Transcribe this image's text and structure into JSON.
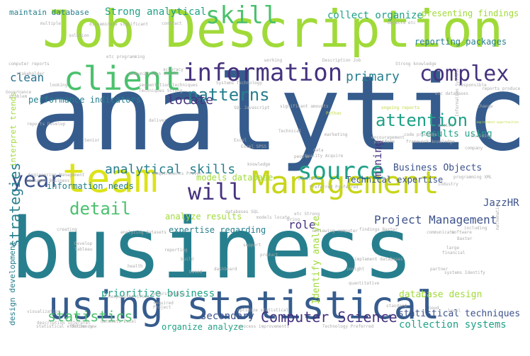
{
  "palette": {
    "dark_purple": "#46327e",
    "blue": "#365c8d",
    "slate_blue": "#3b528b",
    "teal": "#277f8e",
    "teal_light": "#1fa187",
    "green": "#4ac16d",
    "lime": "#a0da39",
    "yellow": "#dce319"
  },
  "words": [
    {
      "text": "analytic",
      "color": "#365c8d"
    },
    {
      "text": "business",
      "color": "#277f8e"
    },
    {
      "text": "Job Description",
      "color": "#a0da39"
    },
    {
      "text": "using statistical",
      "color": "#365c8d"
    },
    {
      "text": "team",
      "color": "#dce319"
    },
    {
      "text": "Management",
      "color": "#c8d61a"
    },
    {
      "text": "client",
      "color": "#4ac16d"
    },
    {
      "text": "information",
      "color": "#46327e"
    },
    {
      "text": "complex",
      "color": "#46327e"
    },
    {
      "text": "skill",
      "color": "#4ac16d"
    },
    {
      "text": "source",
      "color": "#1fa187"
    },
    {
      "text": "will",
      "color": "#46327e"
    },
    {
      "text": "year",
      "color": "#3b528b"
    },
    {
      "text": "detail",
      "color": "#4ac16d"
    },
    {
      "text": "attention",
      "color": "#1fa187"
    },
    {
      "text": "patterns",
      "color": "#277f8e"
    },
    {
      "text": "primary",
      "color": "#277f8e"
    },
    {
      "text": "clean",
      "color": "#2c728e"
    },
    {
      "text": "locate",
      "color": "#46327e"
    },
    {
      "text": "Computer Science",
      "color": "#46327e"
    },
    {
      "text": "Project Management",
      "color": "#3b528b"
    },
    {
      "text": "statistics",
      "color": "#4ac16d"
    },
    {
      "text": "analytical skills",
      "color": "#277f8e"
    },
    {
      "text": "strategies",
      "color": "#277f8e"
    },
    {
      "text": "role",
      "color": "#46327e"
    },
    {
      "text": "mining",
      "color": "#46327e"
    },
    {
      "text": "Strong analytical",
      "color": "#1fa187"
    },
    {
      "text": "collect organize",
      "color": "#1fa187"
    },
    {
      "text": "presenting findings",
      "color": "#a0da39"
    },
    {
      "text": "reporting packages",
      "color": "#277f8e"
    },
    {
      "text": "maintain database",
      "color": "#277f8e"
    },
    {
      "text": "performance indicators",
      "color": "#277f8e"
    },
    {
      "text": "results using",
      "color": "#1fa187"
    },
    {
      "text": "Business Objects",
      "color": "#3b528b"
    },
    {
      "text": "Technical expertise",
      "color": "#3b528b"
    },
    {
      "text": "JazzHR",
      "color": "#3b528b"
    },
    {
      "text": "analyze results",
      "color": "#a0da39"
    },
    {
      "text": "expertise regarding",
      "color": "#277f8e"
    },
    {
      "text": "prioritize business",
      "color": "#1fa187"
    },
    {
      "text": "secondary",
      "color": "#3b528b"
    },
    {
      "text": "organize analyze",
      "color": "#1fa187"
    },
    {
      "text": "statistical techniques",
      "color": "#3b528b"
    },
    {
      "text": "collection systems",
      "color": "#1fa187"
    },
    {
      "text": "database design",
      "color": "#a0da39"
    },
    {
      "text": "information needs",
      "color": "#277f8e"
    },
    {
      "text": "models database",
      "color": "#a0da39"
    },
    {
      "text": "interpret trends",
      "color": "#a0da39"
    },
    {
      "text": "design development",
      "color": "#277f8e"
    },
    {
      "text": "Identify analyze",
      "color": "#a0da39"
    },
    {
      "text": "Description Job",
      "color": "#aaaaaa"
    },
    {
      "text": "Systems Technology",
      "color": "#aaaaaa"
    },
    {
      "text": "Strong knowledge",
      "color": "#aaaaaa"
    },
    {
      "text": "communication skills",
      "color": "#aaaaaa"
    },
    {
      "text": "SQL Javascript",
      "color": "#aaaaaa"
    },
    {
      "text": "Excel SPSS",
      "color": "#aaaaaa"
    },
    {
      "text": "code problems",
      "color": "#aaaaaa"
    },
    {
      "text": "framework knowledge",
      "color": "#aaaaaa"
    },
    {
      "text": "improvement opportunities",
      "color": "#c0d940"
    },
    {
      "text": "Engineering Management",
      "color": "#aaaaaa"
    },
    {
      "text": "packages Business",
      "color": "#aaaaaa"
    },
    {
      "text": "databases SQL",
      "color": "#aaaaaa"
    },
    {
      "text": "analyzing datasets",
      "color": "#aaaaaa"
    },
    {
      "text": "Preferred Preferred",
      "color": "#aaaaaa"
    },
    {
      "text": "reviewing computer",
      "color": "#aaaaaa"
    },
    {
      "text": "findings Baxter",
      "color": "#aaaaaa"
    },
    {
      "text": "optimize statistical",
      "color": "#aaaaaa"
    },
    {
      "text": "statistical efficiency",
      "color": "#aaaaaa"
    },
    {
      "text": "process improvements",
      "color": "#aaaaaa"
    },
    {
      "text": "Technology Preferred",
      "color": "#aaaaaa"
    },
    {
      "text": "quantitative",
      "color": "#aaaaaa"
    },
    {
      "text": "visualization",
      "color": "#aaaaaa"
    },
    {
      "text": "dashboard",
      "color": "#aaaaaa"
    },
    {
      "text": "insight",
      "color": "#aaaaaa"
    },
    {
      "text": "implement databases",
      "color": "#aaaaaa"
    },
    {
      "text": "systems Identify",
      "color": "#aaaaaa"
    },
    {
      "text": "Requirements Proven",
      "color": "#aaaaaa"
    },
    {
      "text": "segmentation techniques",
      "color": "#aaaaaa"
    },
    {
      "text": "Techniques Strong",
      "color": "#aaaaaa"
    },
    {
      "text": "reports Develop",
      "color": "#aaaaaa"
    },
    {
      "text": "etc programming",
      "color": "#aaaaaa"
    },
    {
      "text": "computer reports",
      "color": "#aaaaaa"
    },
    {
      "text": "disseminate significant",
      "color": "#aaaaaa"
    },
    {
      "text": "Objects etc",
      "color": "#aaaaaa"
    },
    {
      "text": "ongoing reports",
      "color": "#c0d940"
    },
    {
      "text": "significant amounts",
      "color": "#aaaaaa"
    },
    {
      "text": "quality Acquire",
      "color": "#aaaaaa"
    },
    {
      "text": "Information Systems",
      "color": "#aaaaaa"
    },
    {
      "text": "programming XML",
      "color": "#aaaaaa"
    },
    {
      "text": "Develop",
      "color": "#aaaaaa"
    },
    {
      "text": "Tableau",
      "color": "#aaaaaa"
    },
    {
      "text": "reporting",
      "color": "#aaaaaa"
    },
    {
      "text": "Baxter",
      "color": "#aaaaaa"
    },
    {
      "text": "building",
      "color": "#aaaaaa"
    },
    {
      "text": "working",
      "color": "#aaaaaa"
    },
    {
      "text": "accuracy",
      "color": "#aaaaaa"
    },
    {
      "text": "marketing",
      "color": "#aaaaaa"
    },
    {
      "text": "Senior",
      "color": "#aaaaaa"
    },
    {
      "text": "multiple",
      "color": "#aaaaaa"
    },
    {
      "text": "contract",
      "color": "#aaaaaa"
    },
    {
      "text": "solution",
      "color": "#aaaaaa"
    },
    {
      "text": "Technical",
      "color": "#aaaaaa"
    },
    {
      "text": "Excel",
      "color": "#aaaaaa"
    },
    {
      "text": "financial",
      "color": "#aaaaaa"
    },
    {
      "text": "partner",
      "color": "#aaaaaa"
    },
    {
      "text": "standard",
      "color": "#aaaaaa"
    },
    {
      "text": "Good",
      "color": "#aaaaaa"
    },
    {
      "text": "level",
      "color": "#aaaaaa"
    },
    {
      "text": "health",
      "color": "#aaaaaa"
    },
    {
      "text": "deliver",
      "color": "#aaaaaa"
    },
    {
      "text": "creating",
      "color": "#aaaaaa"
    },
    {
      "text": "Python",
      "color": "#c0d940"
    },
    {
      "text": "platform",
      "color": "#aaaaaa"
    },
    {
      "text": "company",
      "color": "#aaaaaa"
    },
    {
      "text": "people",
      "color": "#aaaaaa"
    },
    {
      "text": "industry",
      "color": "#aaaaaa"
    },
    {
      "text": "position",
      "color": "#aaaaaa"
    },
    {
      "text": "product",
      "color": "#aaaaaa"
    },
    {
      "text": "support",
      "color": "#aaaaaa"
    },
    {
      "text": "build",
      "color": "#aaaaaa"
    },
    {
      "text": "including",
      "color": "#aaaaaa"
    },
    {
      "text": "software",
      "color": "#aaaaaa"
    },
    {
      "text": "communicate",
      "color": "#aaaaaa"
    },
    {
      "text": "change",
      "color": "#aaaaaa"
    },
    {
      "text": "assist",
      "color": "#aaaaaa"
    },
    {
      "text": "based",
      "color": "#aaaaaa"
    },
    {
      "text": "problem",
      "color": "#aaaaaa"
    },
    {
      "text": "Governance",
      "color": "#aaaaaa"
    },
    {
      "text": "looking",
      "color": "#aaaaaa"
    },
    {
      "text": "understanding",
      "color": "#aaaaaa"
    },
    {
      "text": "required",
      "color": "#aaaaaa"
    },
    {
      "text": "Responsibilities",
      "color": "#aaaaaa"
    },
    {
      "text": "Project",
      "color": "#aaaaaa"
    },
    {
      "text": "datasets Excel",
      "color": "#aaaaaa"
    },
    {
      "text": "description Interpret",
      "color": "#aaaaaa"
    },
    {
      "text": "define new",
      "color": "#aaaaaa"
    },
    {
      "text": "stakeholder",
      "color": "#aaaaaa"
    },
    {
      "text": "knowledge",
      "color": "#aaaaaa"
    },
    {
      "text": "responsible",
      "color": "#aaaaaa"
    },
    {
      "text": "reports produce",
      "color": "#aaaaaa"
    },
    {
      "text": "etc databases",
      "color": "#aaaaaa"
    },
    {
      "text": "bring",
      "color": "#aaaaaa"
    },
    {
      "text": "etc Strong",
      "color": "#aaaaaa"
    },
    {
      "text": "models locate",
      "color": "#aaaaaa"
    },
    {
      "text": "encouragement",
      "color": "#aaaaaa"
    },
    {
      "text": "mathematics",
      "color": "#aaaaaa"
    },
    {
      "text": "large",
      "color": "#aaaaaa"
    },
    {
      "text": "data",
      "color": "#aaaaaa"
    }
  ]
}
